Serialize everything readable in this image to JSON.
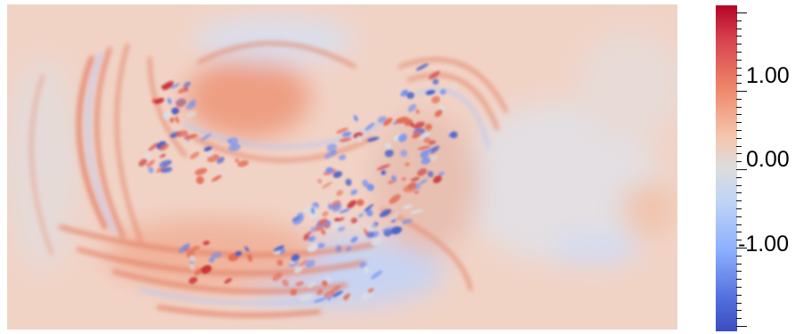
{
  "colorbar": {
    "labels": [
      "1.00",
      "0.00",
      "-1.00"
    ],
    "colors": {
      "max": "#b40426",
      "mid": "#dddcdc",
      "min": "#3b4cc0"
    }
  },
  "field_colors": {
    "background": "#f3d6c9",
    "red": "#e2694f",
    "dark_red": "#c72a2e",
    "blue": "#6f8ff0",
    "dark_blue": "#3d58c9",
    "neutral": "#dcdfe6"
  }
}
